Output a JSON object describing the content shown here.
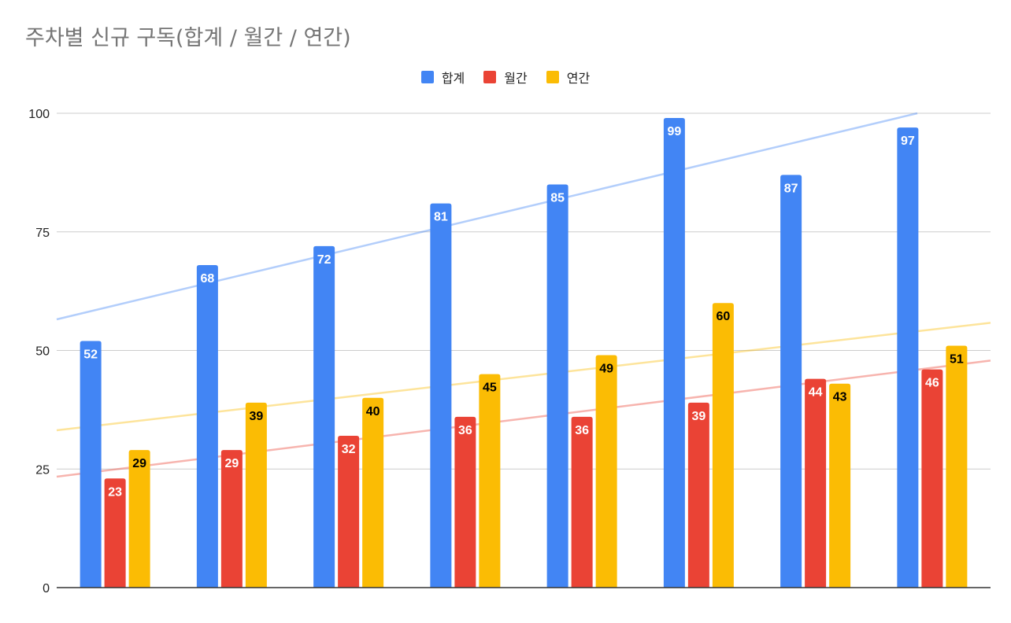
{
  "chart_data": {
    "type": "bar",
    "title": "주차별 신규 구독(합계 / 월간 / 연간)",
    "categories": [
      "",
      "",
      "",
      "",
      "",
      "",
      "",
      ""
    ],
    "series": [
      {
        "name": "합계",
        "color": "#4285F4",
        "values": [
          52,
          68,
          72,
          81,
          85,
          99,
          87,
          97
        ],
        "trendline": true,
        "label_color": "#ffffff"
      },
      {
        "name": "월간",
        "color": "#EA4335",
        "values": [
          23,
          29,
          32,
          36,
          36,
          39,
          44,
          46
        ],
        "trendline": true,
        "label_color": "#ffffff"
      },
      {
        "name": "연간",
        "color": "#FBBC04",
        "values": [
          29,
          39,
          40,
          45,
          49,
          60,
          43,
          51
        ],
        "trendline": true,
        "label_color": "#000000"
      }
    ],
    "yticks": [
      "0",
      "25",
      "50",
      "75",
      "100"
    ],
    "ylim": [
      0,
      100
    ],
    "grid": true,
    "legend_position": "top",
    "xlabel": "",
    "ylabel": ""
  }
}
